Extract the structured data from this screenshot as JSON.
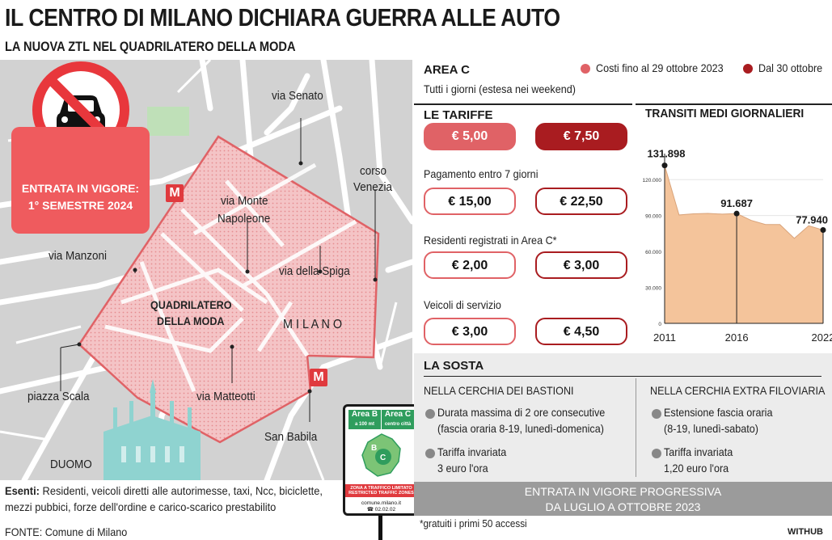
{
  "header": {
    "title": "IL CENTRO DI MILANO DICHIARA GUERRA ALLE AUTO",
    "subtitle": "LA NUOVA ZTL NEL QUADRILATERO DELLA MODA"
  },
  "map": {
    "entrata": [
      "ENTRATA IN VIGORE:",
      "1° SEMESTRE 2024"
    ],
    "metro_label": "M",
    "labels": {
      "via_senato": "via Senato",
      "corso_venezia_1": "corso",
      "corso_venezia_2": "Venezia",
      "via_monte_1": "via Monte",
      "via_monte_2": "Napoleone",
      "via_manzoni": "via Manzoni",
      "via_spiga": "via della Spiga",
      "quadrilatero_1": "QUADRILATERO",
      "quadrilatero_2": "DELLA MODA",
      "milano": "M I L A N O",
      "piazza_scala": "piazza Scala",
      "via_matteotti": "via Matteotti",
      "san_babila": "San Babila",
      "duomo": "DUOMO"
    },
    "sign": {
      "area_b": "Area B",
      "area_c": "Area C",
      "area_b_sub": "a 100 mt",
      "area_c_sub": "centro città",
      "b_letter": "B",
      "c_letter": "C",
      "ztl": "ZONA A TRAFFICO LIMITATO",
      "ztl_en": "RESTRICTED TRAFFIC ZONES",
      "site": "comune.milano.it",
      "phone": "☎ 02.02.02"
    }
  },
  "esenti": {
    "label": "Esenti:",
    "line1": " Residenti, veicoli diretti alle autorimesse, taxi, Ncc, biciclette,",
    "line2": "mezzi pubbici, forze dell'ordine e carico-scarico prestabilito"
  },
  "footer": {
    "source": "FONTE: Comune di Milano",
    "note": "*gratuiti i primi 50 accessi",
    "brand": "WITHUB"
  },
  "area_c": {
    "title": "AREA C",
    "subtitle": "Tutti i giorni (estesa nei weekend)",
    "legend_old": "Costi fino al 29 ottobre 2023",
    "legend_new": "Dal 30 ottobre",
    "color_old": "#e06266",
    "color_new": "#a91c20"
  },
  "tariffe": {
    "title": "LE TARIFFE",
    "rows": [
      {
        "label": "",
        "old": "€ 5,00",
        "new": "€ 7,50"
      },
      {
        "label": "Pagamento entro 7 giorni",
        "old": "€ 15,00",
        "new": "€ 22,50"
      },
      {
        "label": "Residenti registrati in Area C*",
        "old": "€ 2,00",
        "new": "€ 3,00"
      },
      {
        "label": "Veicoli di servizio",
        "old": "€ 3,00",
        "new": "€ 4,50"
      }
    ]
  },
  "chart_data": {
    "type": "area",
    "title": "TRANSITI MEDI GIORNALIERI",
    "x": [
      2011,
      2012,
      2013,
      2014,
      2015,
      2016,
      2017,
      2018,
      2019,
      2020,
      2021,
      2022
    ],
    "values": [
      131898,
      90500,
      91500,
      91800,
      91200,
      91687,
      86000,
      82500,
      82500,
      71000,
      81500,
      77940
    ],
    "xticks": [
      "2011",
      "2016",
      "2022"
    ],
    "yticks": [
      "0",
      "30.000",
      "60.000",
      "90.000",
      "120.000"
    ],
    "ylim": [
      0,
      135000
    ],
    "callouts": [
      {
        "x": 2011,
        "label": "131.898"
      },
      {
        "x": 2016,
        "label": "91.687"
      },
      {
        "x": 2022,
        "label": "77.940"
      }
    ],
    "fill": "#f4c49b",
    "stroke": "#d9a37a"
  },
  "sosta": {
    "title": "LA SOSTA",
    "left": {
      "heading": "NELLA CERCHIA DEI BASTIONI",
      "b1_l1": "Durata massima di 2 ore consecutive",
      "b1_l2": "(fascia oraria 8-19, lunedì-domenica)",
      "b2_l1": "Tariffa invariata",
      "b2_l2": "3 euro l'ora"
    },
    "right": {
      "heading": "NELLA CERCHIA EXTRA FILOVIARIA",
      "b1_l1": "Estensione fascia oraria",
      "b1_l2": "(8-19, lunedì-sabato)",
      "b2_l1": "Tariffa invariata",
      "b2_l2": "1,20 euro l'ora"
    },
    "banner_l1": "ENTRATA IN VIGORE PROGRESSIVA",
    "banner_l2": "DA LUGLIO A OTTOBRE 2023"
  }
}
